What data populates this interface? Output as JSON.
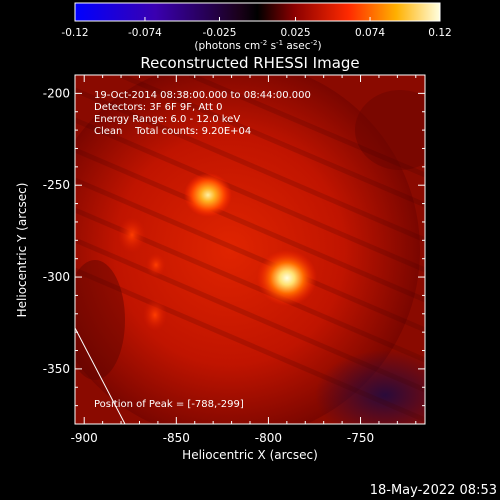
{
  "colorbar": {
    "ticks": [
      "-0.12",
      "-0.074",
      "-0.025",
      "0.025",
      "0.074",
      "0.12"
    ],
    "tick_values": [
      -0.12,
      -0.074,
      -0.025,
      0.025,
      0.074,
      0.12
    ],
    "range": [
      -0.12,
      0.12
    ],
    "units_main": "(photons cm",
    "units_sup1": "-2",
    "units_mid1": " s",
    "units_sup2": "-1",
    "units_mid2": " asec",
    "units_sup3": "-2",
    "units_end": ")"
  },
  "image": {
    "title": "Reconstructed RHESSI Image",
    "info_lines": [
      "19-Oct-2014 08:38:00.000 to 08:44:00.000",
      "Detectors: 3F 6F 9F, Att 0",
      "Energy Range: 6.0 - 12.0 keV",
      "Clean    Total counts: 9.20E+04"
    ],
    "peak_label": "Position of Peak = [-788,-299]",
    "peak_position": [
      -788,
      -299
    ],
    "xlabel": "Heliocentric X (arcsec)",
    "ylabel": "Heliocentric Y (arcsec)",
    "x_ticks": [
      "-900",
      "-850",
      "-800",
      "-750"
    ],
    "x_tick_values": [
      -900,
      -850,
      -800,
      -750
    ],
    "y_ticks": [
      "-200",
      "-250",
      "-300",
      "-350"
    ],
    "y_tick_values": [
      -200,
      -250,
      -300,
      -350
    ],
    "xlim": [
      -905,
      -715
    ],
    "ylim": [
      -380,
      -190
    ],
    "sources": [
      {
        "x": -788,
        "y": -299,
        "brightness": 1.0
      },
      {
        "x": -833,
        "y": -253,
        "brightness": 0.85
      }
    ]
  },
  "timestamp": "18-May-2022 08:53",
  "colors": {
    "background": "#000000",
    "axis": "#ffffff"
  }
}
